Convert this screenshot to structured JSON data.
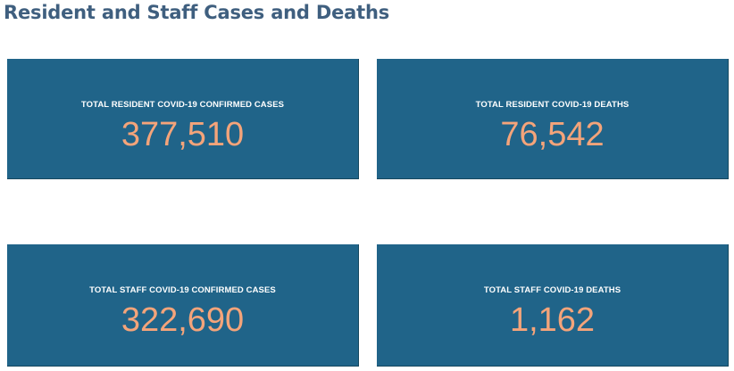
{
  "page": {
    "title": "Resident and Staff Cases and Deaths"
  },
  "cards": [
    {
      "label": "TOTAL RESIDENT COVID-19 CONFIRMED CASES",
      "value": "377,510"
    },
    {
      "label": "TOTAL RESIDENT COVID-19 DEATHS",
      "value": "76,542"
    },
    {
      "label": "TOTAL STAFF COVID-19 CONFIRMED CASES",
      "value": "322,690"
    },
    {
      "label": "TOTAL STAFF COVID-19 DEATHS",
      "value": "1,162"
    }
  ],
  "colors": {
    "title": "#3f5f7f",
    "card_background": "#206489",
    "card_label": "#ffffff",
    "card_value": "#f4a47a"
  }
}
